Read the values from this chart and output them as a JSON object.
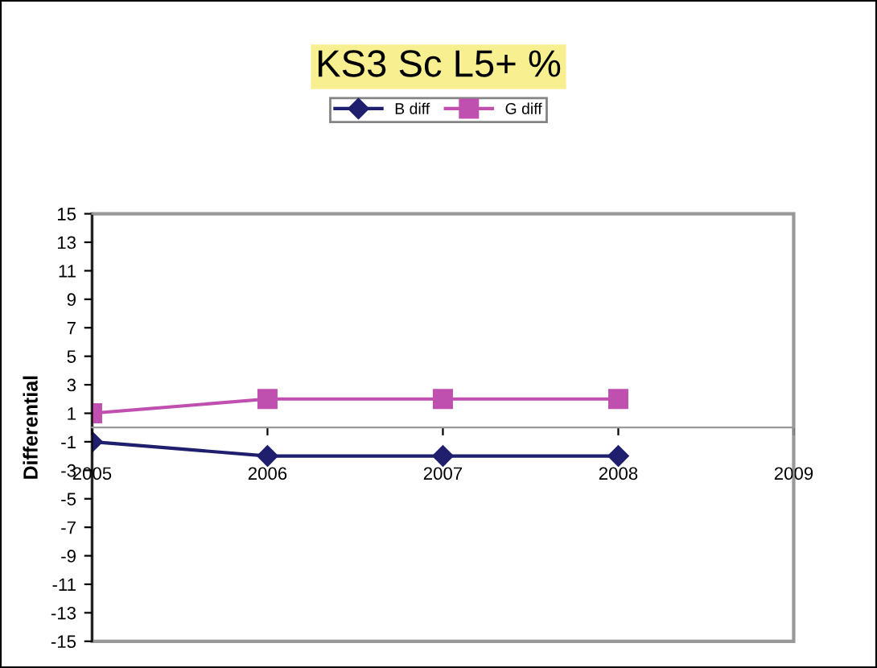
{
  "chart_data": {
    "type": "line",
    "title": "KS3 Sc L5+ %",
    "ylabel": "Differential",
    "x": [
      2005,
      2006,
      2007,
      2008
    ],
    "series": [
      {
        "name": "B diff",
        "color": "#1f1f6e",
        "values": [
          -1,
          -2,
          -2,
          -2
        ],
        "marker": "diamond"
      },
      {
        "name": "G diff",
        "color": "#c050b0",
        "values": [
          1,
          2,
          2,
          2
        ],
        "marker": "square"
      }
    ],
    "xlim": [
      2005,
      2009
    ],
    "xticks": [
      2005,
      2006,
      2007,
      2008,
      2009
    ],
    "ylim": [
      -15,
      15
    ],
    "yticks": [
      -15,
      -13,
      -11,
      -9,
      -7,
      -5,
      -3,
      -1,
      1,
      3,
      5,
      7,
      9,
      11,
      13,
      15
    ],
    "grid": false,
    "legend": "top",
    "line_style": "solid"
  }
}
